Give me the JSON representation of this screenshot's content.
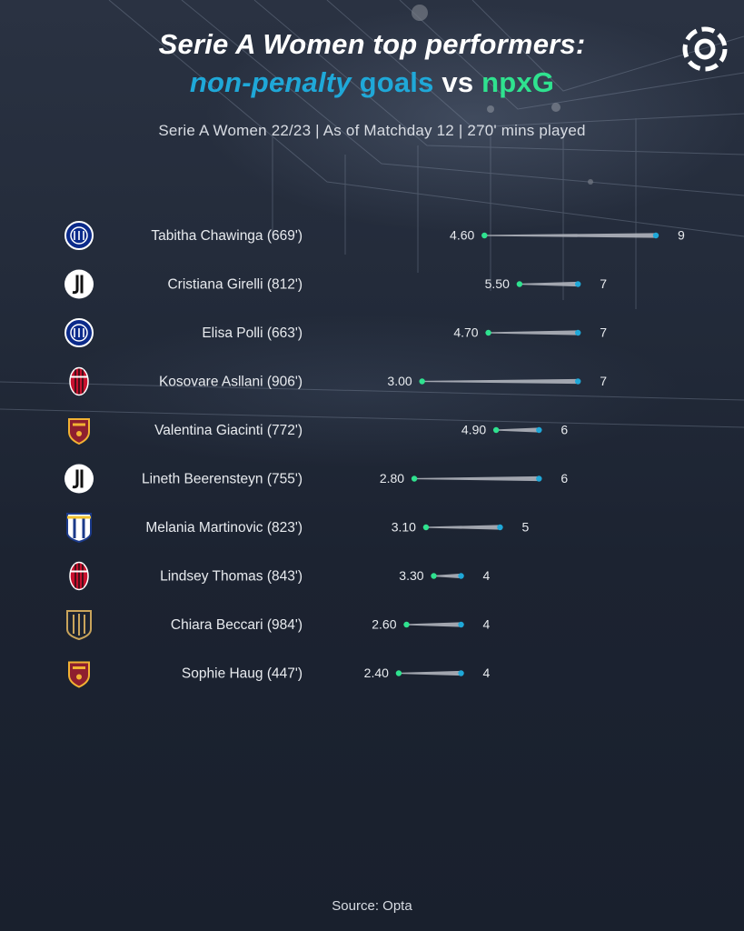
{
  "header": {
    "title_line1": "Serie A Women top performers:",
    "title_np": "non-penalty",
    "title_goals": "goals",
    "title_vs": "vs",
    "title_npxg": "npxG",
    "subtitle": "Serie A Women 22/23 |  As of Matchday 12 | 270' mins played"
  },
  "footer": {
    "source": "Source: Opta"
  },
  "colors": {
    "goals": "#1fa8d8",
    "npxg": "#2fe28f",
    "connector": "#b8bcc4"
  },
  "chart_data": {
    "type": "dumbbell",
    "title": "Serie A Women top performers: non-penalty goals vs npxG",
    "subtitle": "Serie A Women 22/23 |  As of Matchday 12 | 270' mins played",
    "series": [
      {
        "name": "npxG",
        "color": "#2fe28f"
      },
      {
        "name": "non-penalty goals",
        "color": "#1fa8d8"
      }
    ],
    "rows": [
      {
        "label": "Tabitha Chawinga (669')",
        "club_icon": "inter-crest-icon",
        "npxg": 4.6,
        "npxg_label": "4.60",
        "goals": 9,
        "goals_label": "9"
      },
      {
        "label": "Cristiana Girelli (812')",
        "club_icon": "juventus-crest-icon",
        "npxg": 5.5,
        "npxg_label": "5.50",
        "goals": 7,
        "goals_label": "7"
      },
      {
        "label": "Elisa Polli (663')",
        "club_icon": "inter-crest-icon",
        "npxg": 4.7,
        "npxg_label": "4.70",
        "goals": 7,
        "goals_label": "7"
      },
      {
        "label": "Kosovare Asllani (906')",
        "club_icon": "milan-crest-icon",
        "npxg": 3.0,
        "npxg_label": "3.00",
        "goals": 7,
        "goals_label": "7"
      },
      {
        "label": "Valentina Giacinti (772')",
        "club_icon": "roma-crest-icon",
        "npxg": 4.9,
        "npxg_label": "4.90",
        "goals": 6,
        "goals_label": "6"
      },
      {
        "label": "Lineth Beerensteyn (755')",
        "club_icon": "juventus-crest-icon",
        "npxg": 2.8,
        "npxg_label": "2.80",
        "goals": 6,
        "goals_label": "6"
      },
      {
        "label": "Melania Martinovic (823')",
        "club_icon": "parma-crest-icon",
        "npxg": 3.1,
        "npxg_label": "3.10",
        "goals": 5,
        "goals_label": "5"
      },
      {
        "label": "Lindsey Thomas (843')",
        "club_icon": "milan-crest-icon",
        "npxg": 3.3,
        "npxg_label": "3.30",
        "goals": 4,
        "goals_label": "4"
      },
      {
        "label": "Chiara Beccari (984')",
        "club_icon": "pomigliano-crest-icon",
        "npxg": 2.6,
        "npxg_label": "2.60",
        "goals": 4,
        "goals_label": "4"
      },
      {
        "label": "Sophie Haug (447')",
        "club_icon": "roma-crest-icon",
        "npxg": 2.4,
        "npxg_label": "2.40",
        "goals": 4,
        "goals_label": "4"
      }
    ],
    "xlim": [
      0,
      9
    ],
    "grid": false
  }
}
